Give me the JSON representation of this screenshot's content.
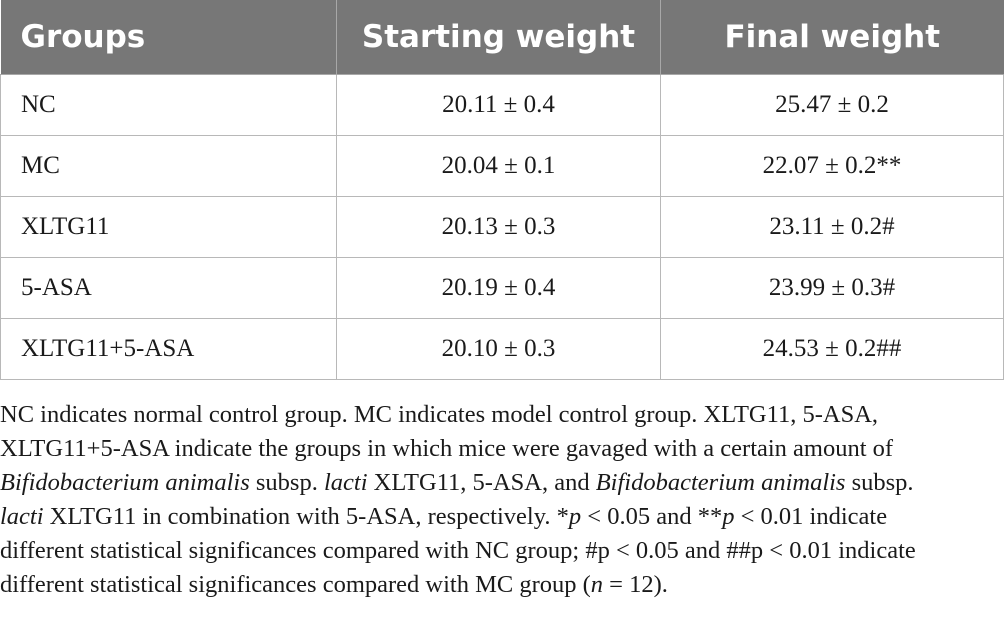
{
  "table": {
    "headers": [
      "Groups",
      "Starting weight",
      "Final weight"
    ],
    "rows": [
      [
        "NC",
        "20.11 ± 0.4",
        "25.47 ± 0.2"
      ],
      [
        "MC",
        "20.04 ± 0.1",
        "22.07 ± 0.2**"
      ],
      [
        "XLTG11",
        "20.13 ± 0.3",
        "23.11 ± 0.2#"
      ],
      [
        "5-ASA",
        "20.19 ± 0.4",
        "23.99 ± 0.3#"
      ],
      [
        "XLTG11+5-ASA",
        "20.10 ± 0.3",
        "24.53 ± 0.2##"
      ]
    ]
  },
  "footnote": {
    "line1": "NC indicates normal control group. MC indicates model control group. XLTG11, 5-ASA,",
    "line2": "XLTG11+5-ASA indicate the groups in which mice were gavaged with a certain amount of",
    "line3_italic_a": "Bifidobacterium animalis",
    "line3_text_a": " subsp. ",
    "line3_italic_b": "lacti",
    "line3_text_b": " XLTG11, 5-ASA, and ",
    "line3_italic_c": "Bifidobacterium animalis",
    "line3_text_c": " subsp.",
    "line4_italic_a": "lacti",
    "line4_text_a": " XLTG11 in combination with 5-ASA, respectively. *",
    "line4_italic_b": "p",
    "line4_text_b": " < 0.05 and **",
    "line4_italic_c": "p",
    "line4_text_c": " < 0.01 indicate",
    "line5": "different statistical significances compared with NC group; #p < 0.05 and ##p < 0.01 indicate",
    "line6_text_a": "different statistical significances compared with MC group (",
    "line6_italic_a": "n",
    "line6_text_b": " = 12)."
  }
}
